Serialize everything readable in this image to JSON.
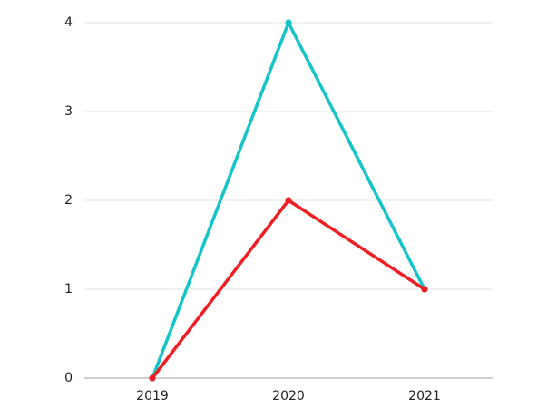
{
  "chart_data": {
    "type": "line",
    "categories": [
      "2019",
      "2020",
      "2021"
    ],
    "series": [
      {
        "values": [
          0,
          4,
          1
        ],
        "color": "#13c4c8"
      },
      {
        "values": [
          0,
          2,
          1
        ],
        "color": "#ef1e25"
      }
    ],
    "ylim": [
      0,
      4
    ],
    "yticks": [
      "0",
      "1",
      "2",
      "3",
      "4"
    ],
    "grid": true,
    "legend": "none",
    "markers": true
  }
}
